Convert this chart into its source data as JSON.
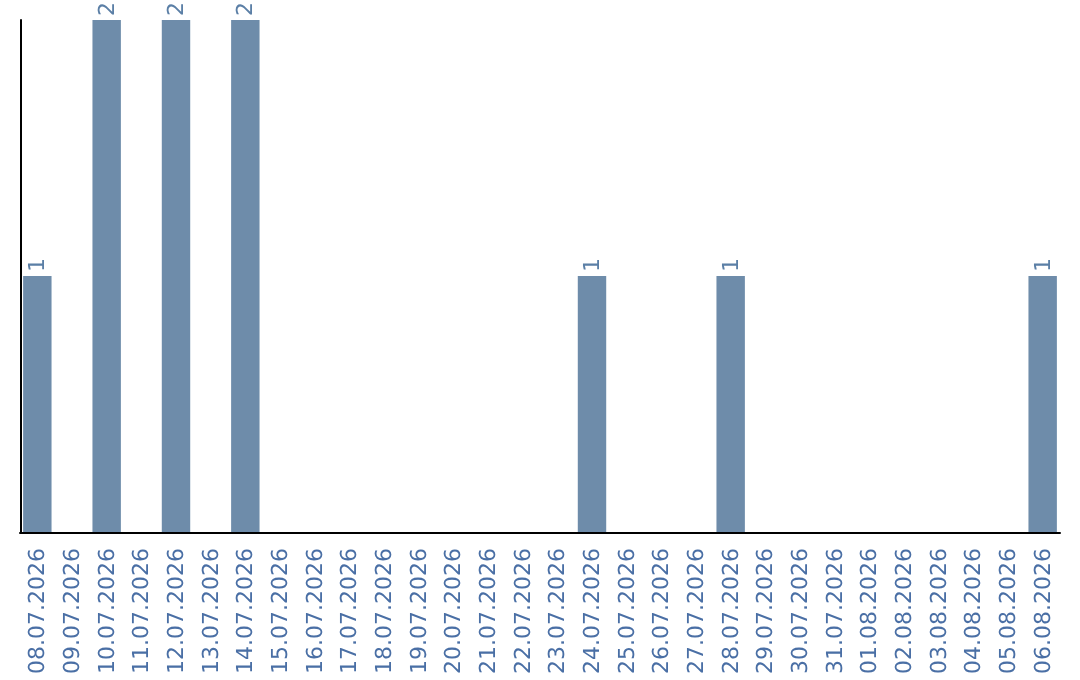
{
  "chart_data": {
    "type": "bar",
    "categories": [
      "08.07.2026",
      "09.07.2026",
      "10.07.2026",
      "11.07.2026",
      "12.07.2026",
      "13.07.2026",
      "14.07.2026",
      "15.07.2026",
      "16.07.2026",
      "17.07.2026",
      "18.07.2026",
      "19.07.2026",
      "20.07.2026",
      "21.07.2026",
      "22.07.2026",
      "23.07.2026",
      "24.07.2026",
      "25.07.2026",
      "26.07.2026",
      "27.07.2026",
      "28.07.2026",
      "29.07.2026",
      "30.07.2026",
      "31.07.2026",
      "01.08.2026",
      "02.08.2026",
      "03.08.2026",
      "04.08.2026",
      "05.08.2026",
      "06.08.2026"
    ],
    "values": [
      1,
      0,
      2,
      0,
      2,
      0,
      2,
      0,
      0,
      0,
      0,
      0,
      0,
      0,
      0,
      0,
      1,
      0,
      0,
      0,
      1,
      0,
      0,
      0,
      0,
      0,
      0,
      0,
      0,
      1
    ],
    "value_labels": [
      "1",
      null,
      "2",
      null,
      "2",
      null,
      "2",
      null,
      null,
      null,
      null,
      null,
      null,
      null,
      null,
      null,
      "1",
      null,
      null,
      null,
      "1",
      null,
      null,
      null,
      null,
      null,
      null,
      null,
      null,
      "1"
    ],
    "color": "#6e8caa"
  }
}
